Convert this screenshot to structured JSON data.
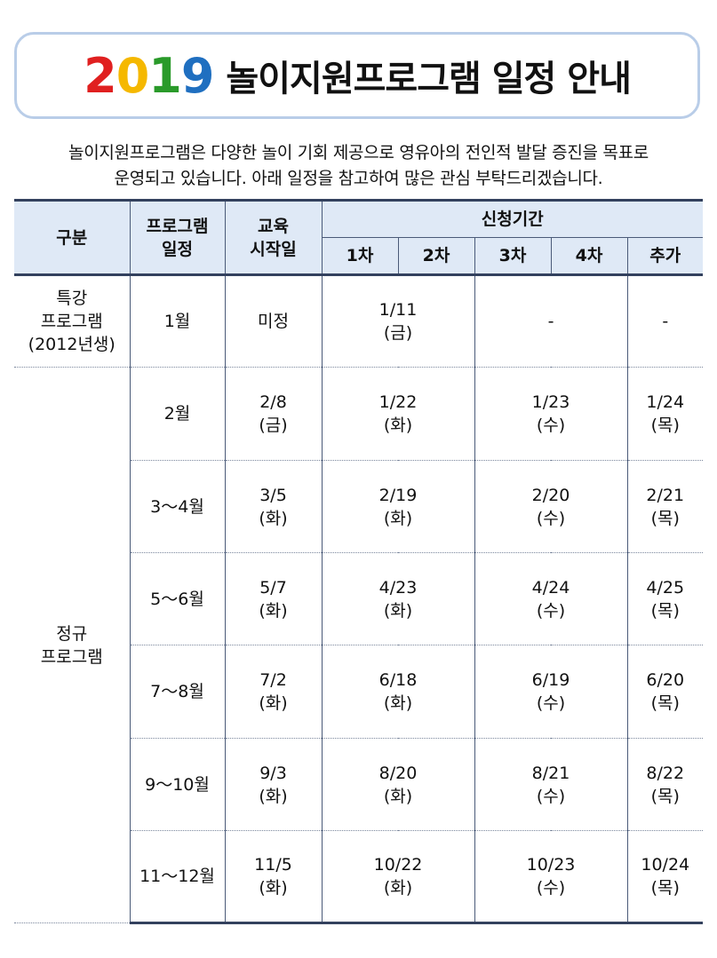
{
  "title": {
    "year_digits": [
      "2",
      "0",
      "1",
      "9"
    ],
    "year_colors": [
      "#e02020",
      "#f5b800",
      "#2a9a2a",
      "#1f6fc0"
    ],
    "text": "놀이지원프로그램 일정 안내"
  },
  "intro": {
    "line1": "놀이지원프로그램은 다양한 놀이 기회 제공으로 영유아의 전인적 발달 증진을 목표로",
    "line2": "운영되고 있습니다. 아래 일정을 참고하여 많은 관심 부탁드리겠습니다."
  },
  "table": {
    "headers": {
      "category": "구분",
      "schedule": [
        "프로그램",
        "일정"
      ],
      "start": [
        "교육",
        "시작일"
      ],
      "period": "신청기간",
      "rounds": [
        "1차",
        "2차",
        "3차",
        "4차",
        "추가"
      ]
    },
    "special": {
      "category": [
        "특강",
        "프로그램",
        "(2012년생)"
      ],
      "month": "1월",
      "start": "미정",
      "r12": [
        "1/11",
        "(금)"
      ],
      "r34": "-",
      "extra": "-"
    },
    "regular_category": [
      "정규",
      "프로그램"
    ],
    "regular": [
      {
        "month": "2월",
        "start": [
          "2/8",
          "(금)"
        ],
        "r12": [
          "1/22",
          "(화)"
        ],
        "r34": [
          "1/23",
          "(수)"
        ],
        "extra": [
          "1/24",
          "(목)"
        ]
      },
      {
        "month": "3～4월",
        "start": [
          "3/5",
          "(화)"
        ],
        "r12": [
          "2/19",
          "(화)"
        ],
        "r34": [
          "2/20",
          "(수)"
        ],
        "extra": [
          "2/21",
          "(목)"
        ]
      },
      {
        "month": "5～6월",
        "start": [
          "5/7",
          "(화)"
        ],
        "r12": [
          "4/23",
          "(화)"
        ],
        "r34": [
          "4/24",
          "(수)"
        ],
        "extra": [
          "4/25",
          "(목)"
        ]
      },
      {
        "month": "7～8월",
        "start": [
          "7/2",
          "(화)"
        ],
        "r12": [
          "6/18",
          "(화)"
        ],
        "r34": [
          "6/19",
          "(수)"
        ],
        "extra": [
          "6/20",
          "(목)"
        ]
      },
      {
        "month": "9～10월",
        "start": [
          "9/3",
          "(화)"
        ],
        "r12": [
          "8/20",
          "(화)"
        ],
        "r34": [
          "8/21",
          "(수)"
        ],
        "extra": [
          "8/22",
          "(목)"
        ]
      },
      {
        "month": "11～12월",
        "start": [
          "11/5",
          "(화)"
        ],
        "r12": [
          "10/22",
          "(화)"
        ],
        "r34": [
          "10/23",
          "(수)"
        ],
        "extra": [
          "10/24",
          "(목)"
        ]
      }
    ]
  }
}
